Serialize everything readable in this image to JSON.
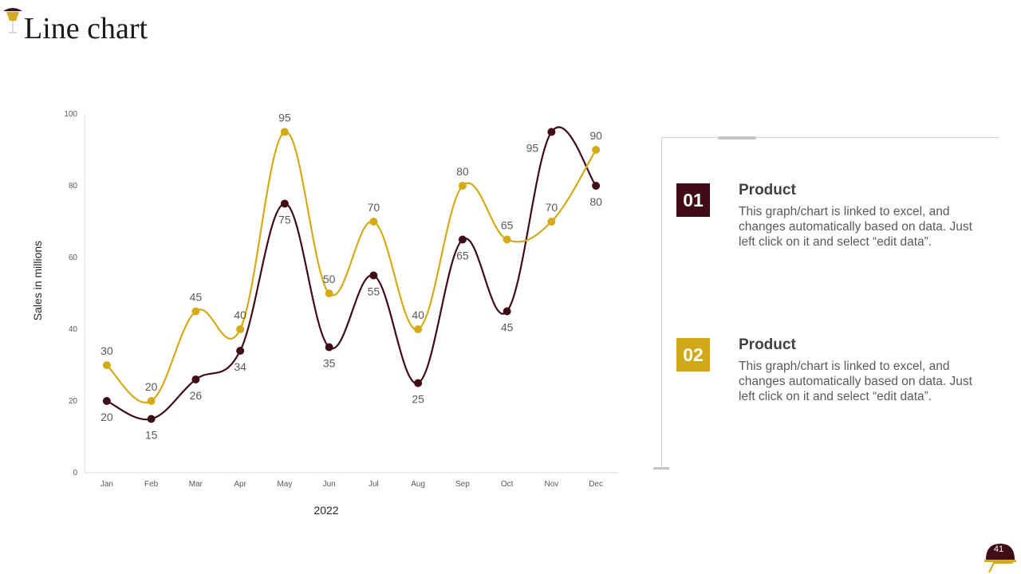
{
  "slide": {
    "title": "Line chart",
    "page_number": "41"
  },
  "colors": {
    "series1": "#3f0c17",
    "series2": "#d4aa16",
    "badge1": "#3f0c17",
    "badge2": "#d0a819",
    "axis": "#d9d9d9"
  },
  "chart_data": {
    "type": "line",
    "title": "",
    "xlabel": "2022",
    "ylabel": "Sales in millions",
    "ylim": [
      0,
      100
    ],
    "yticks": [
      0,
      20,
      40,
      60,
      80,
      100
    ],
    "categories": [
      "Jan",
      "Feb",
      "Mar",
      "Apr",
      "May",
      "Jun",
      "Jul",
      "Aug",
      "Sep",
      "Oct",
      "Nov",
      "Dec"
    ],
    "series": [
      {
        "name": "Product 01",
        "color": "#3f0c17",
        "label_position": "below",
        "values": [
          20,
          15,
          26,
          34,
          75,
          35,
          55,
          25,
          65,
          45,
          95,
          80
        ]
      },
      {
        "name": "Product 02",
        "color": "#d4aa16",
        "label_position": "above",
        "values": [
          30,
          20,
          45,
          40,
          95,
          50,
          70,
          40,
          80,
          65,
          70,
          90
        ]
      }
    ]
  },
  "panel": {
    "items": [
      {
        "number": "01",
        "heading": "Product",
        "text": "This graph/chart is linked to excel, and changes automatically based on data. Just left click on it and select “edit data”."
      },
      {
        "number": "02",
        "heading": "Product",
        "text": "This graph/chart is linked to excel, and changes automatically based on data. Just left click on it and select “edit data”."
      }
    ]
  }
}
